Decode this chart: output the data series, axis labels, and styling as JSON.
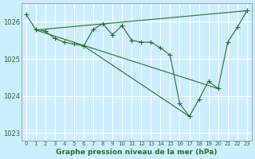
{
  "title": "Graphe pression niveau de la mer (hPa)",
  "bg_color": "#cceeff",
  "grid_color": "#ffffff",
  "line_color": "#2d6e2d",
  "ylim": [
    1022.8,
    1026.5
  ],
  "xlim": [
    -0.5,
    23.5
  ],
  "yticks": [
    1023,
    1024,
    1025,
    1026
  ],
  "xticks": [
    0,
    1,
    2,
    3,
    4,
    5,
    6,
    7,
    8,
    9,
    10,
    11,
    12,
    13,
    14,
    15,
    16,
    17,
    18,
    19,
    20,
    21,
    22,
    23
  ],
  "series_main": [
    [
      0,
      1026.2
    ],
    [
      1,
      1025.8
    ],
    [
      2,
      1025.75
    ],
    [
      3,
      1025.55
    ],
    [
      4,
      1025.45
    ],
    [
      5,
      1025.4
    ],
    [
      6,
      1025.35
    ],
    [
      7,
      1025.8
    ],
    [
      8,
      1025.95
    ],
    [
      9,
      1025.65
    ],
    [
      10,
      1025.9
    ],
    [
      11,
      1025.5
    ],
    [
      12,
      1025.45
    ],
    [
      13,
      1025.45
    ],
    [
      14,
      1025.3
    ],
    [
      15,
      1025.1
    ],
    [
      16,
      1023.8
    ],
    [
      17,
      1023.45
    ],
    [
      18,
      1023.9
    ],
    [
      19,
      1024.4
    ],
    [
      20,
      1024.2
    ],
    [
      21,
      1025.45
    ],
    [
      22,
      1025.85
    ],
    [
      23,
      1026.3
    ]
  ],
  "extra_lines": [
    [
      [
        1,
        23
      ],
      [
        1025.78,
        1026.3
      ]
    ],
    [
      [
        1,
        20
      ],
      [
        1025.78,
        1024.2
      ]
    ],
    [
      [
        6,
        17
      ],
      [
        1025.35,
        1023.45
      ]
    ]
  ]
}
